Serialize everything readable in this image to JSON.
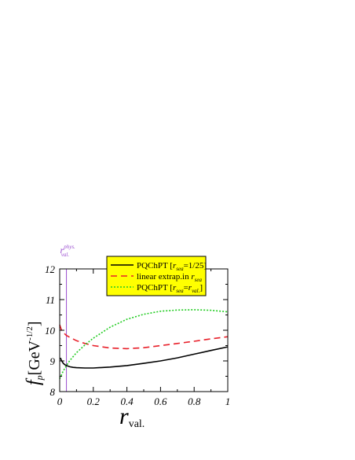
{
  "chart_data": {
    "type": "line",
    "xlabel_main": "r",
    "xlabel_sub": "val.",
    "ylabel_main": "f",
    "ylabel_sub": "p",
    "ylabel_unit": "[GeV",
    "ylabel_exp": "-1/2",
    "ylabel_close": "]",
    "xlim": [
      0,
      1
    ],
    "ylim": [
      8,
      12
    ],
    "xticks": [
      0,
      0.2,
      0.4,
      0.6,
      0.8,
      1
    ],
    "xtick_labels": [
      "0",
      "0.2",
      "0.4",
      "0.6",
      "0.8",
      "1"
    ],
    "yticks": [
      8,
      9,
      10,
      11,
      12
    ],
    "ytick_labels": [
      "8",
      "9",
      "10",
      "11",
      "12"
    ],
    "vline": {
      "x": 0.04,
      "label_main": "r",
      "label_sup": "phys.",
      "label_sub": "val.",
      "color": "#9b4fd0"
    },
    "legend_placement": "top-center",
    "legend_bg": "#ffff00",
    "series": [
      {
        "legend": "PQChPT [r_sea=1/25]",
        "legend_prefix": "PQChPT [",
        "legend_r": "r",
        "legend_sub": "sea",
        "legend_suffix": "=1/25]",
        "color": "#000000",
        "dash": "",
        "x": [
          0.005,
          0.01,
          0.02,
          0.03,
          0.04,
          0.06,
          0.08,
          0.1,
          0.15,
          0.2,
          0.3,
          0.4,
          0.5,
          0.6,
          0.7,
          0.8,
          0.9,
          1.0
        ],
        "y": [
          9.1,
          9.02,
          8.93,
          8.88,
          8.85,
          8.81,
          8.79,
          8.78,
          8.77,
          8.77,
          8.8,
          8.85,
          8.92,
          9.0,
          9.1,
          9.22,
          9.34,
          9.46
        ]
      },
      {
        "legend": "linear extrap.in r_sea",
        "legend_prefix": "linear extrap.in ",
        "legend_r": "r",
        "legend_sub": "sea",
        "legend_suffix": "",
        "color": "#e8202a",
        "dash": "8,5",
        "x": [
          0.0,
          0.01,
          0.02,
          0.04,
          0.06,
          0.1,
          0.15,
          0.2,
          0.3,
          0.4,
          0.5,
          0.6,
          0.7,
          0.8,
          0.9,
          1.0
        ],
        "y": [
          10.18,
          10.02,
          9.93,
          9.83,
          9.77,
          9.66,
          9.57,
          9.5,
          9.42,
          9.4,
          9.43,
          9.5,
          9.57,
          9.64,
          9.72,
          9.79
        ]
      },
      {
        "legend": "PQChPT [r_sea=r_val.]",
        "legend_prefix": "PQChPT  [",
        "legend_r": "r",
        "legend_sub": "sea",
        "legend_mid": "=",
        "legend_r2": "r",
        "legend_sub2": "val.",
        "legend_suffix": "]",
        "color": "#22cc22",
        "dash": "2,2",
        "x": [
          0.0,
          0.02,
          0.04,
          0.06,
          0.1,
          0.15,
          0.2,
          0.3,
          0.4,
          0.5,
          0.6,
          0.7,
          0.8,
          0.9,
          1.0
        ],
        "y": [
          8.42,
          8.66,
          8.85,
          9.01,
          9.27,
          9.52,
          9.74,
          10.1,
          10.36,
          10.52,
          10.62,
          10.66,
          10.67,
          10.65,
          10.6
        ]
      }
    ]
  }
}
